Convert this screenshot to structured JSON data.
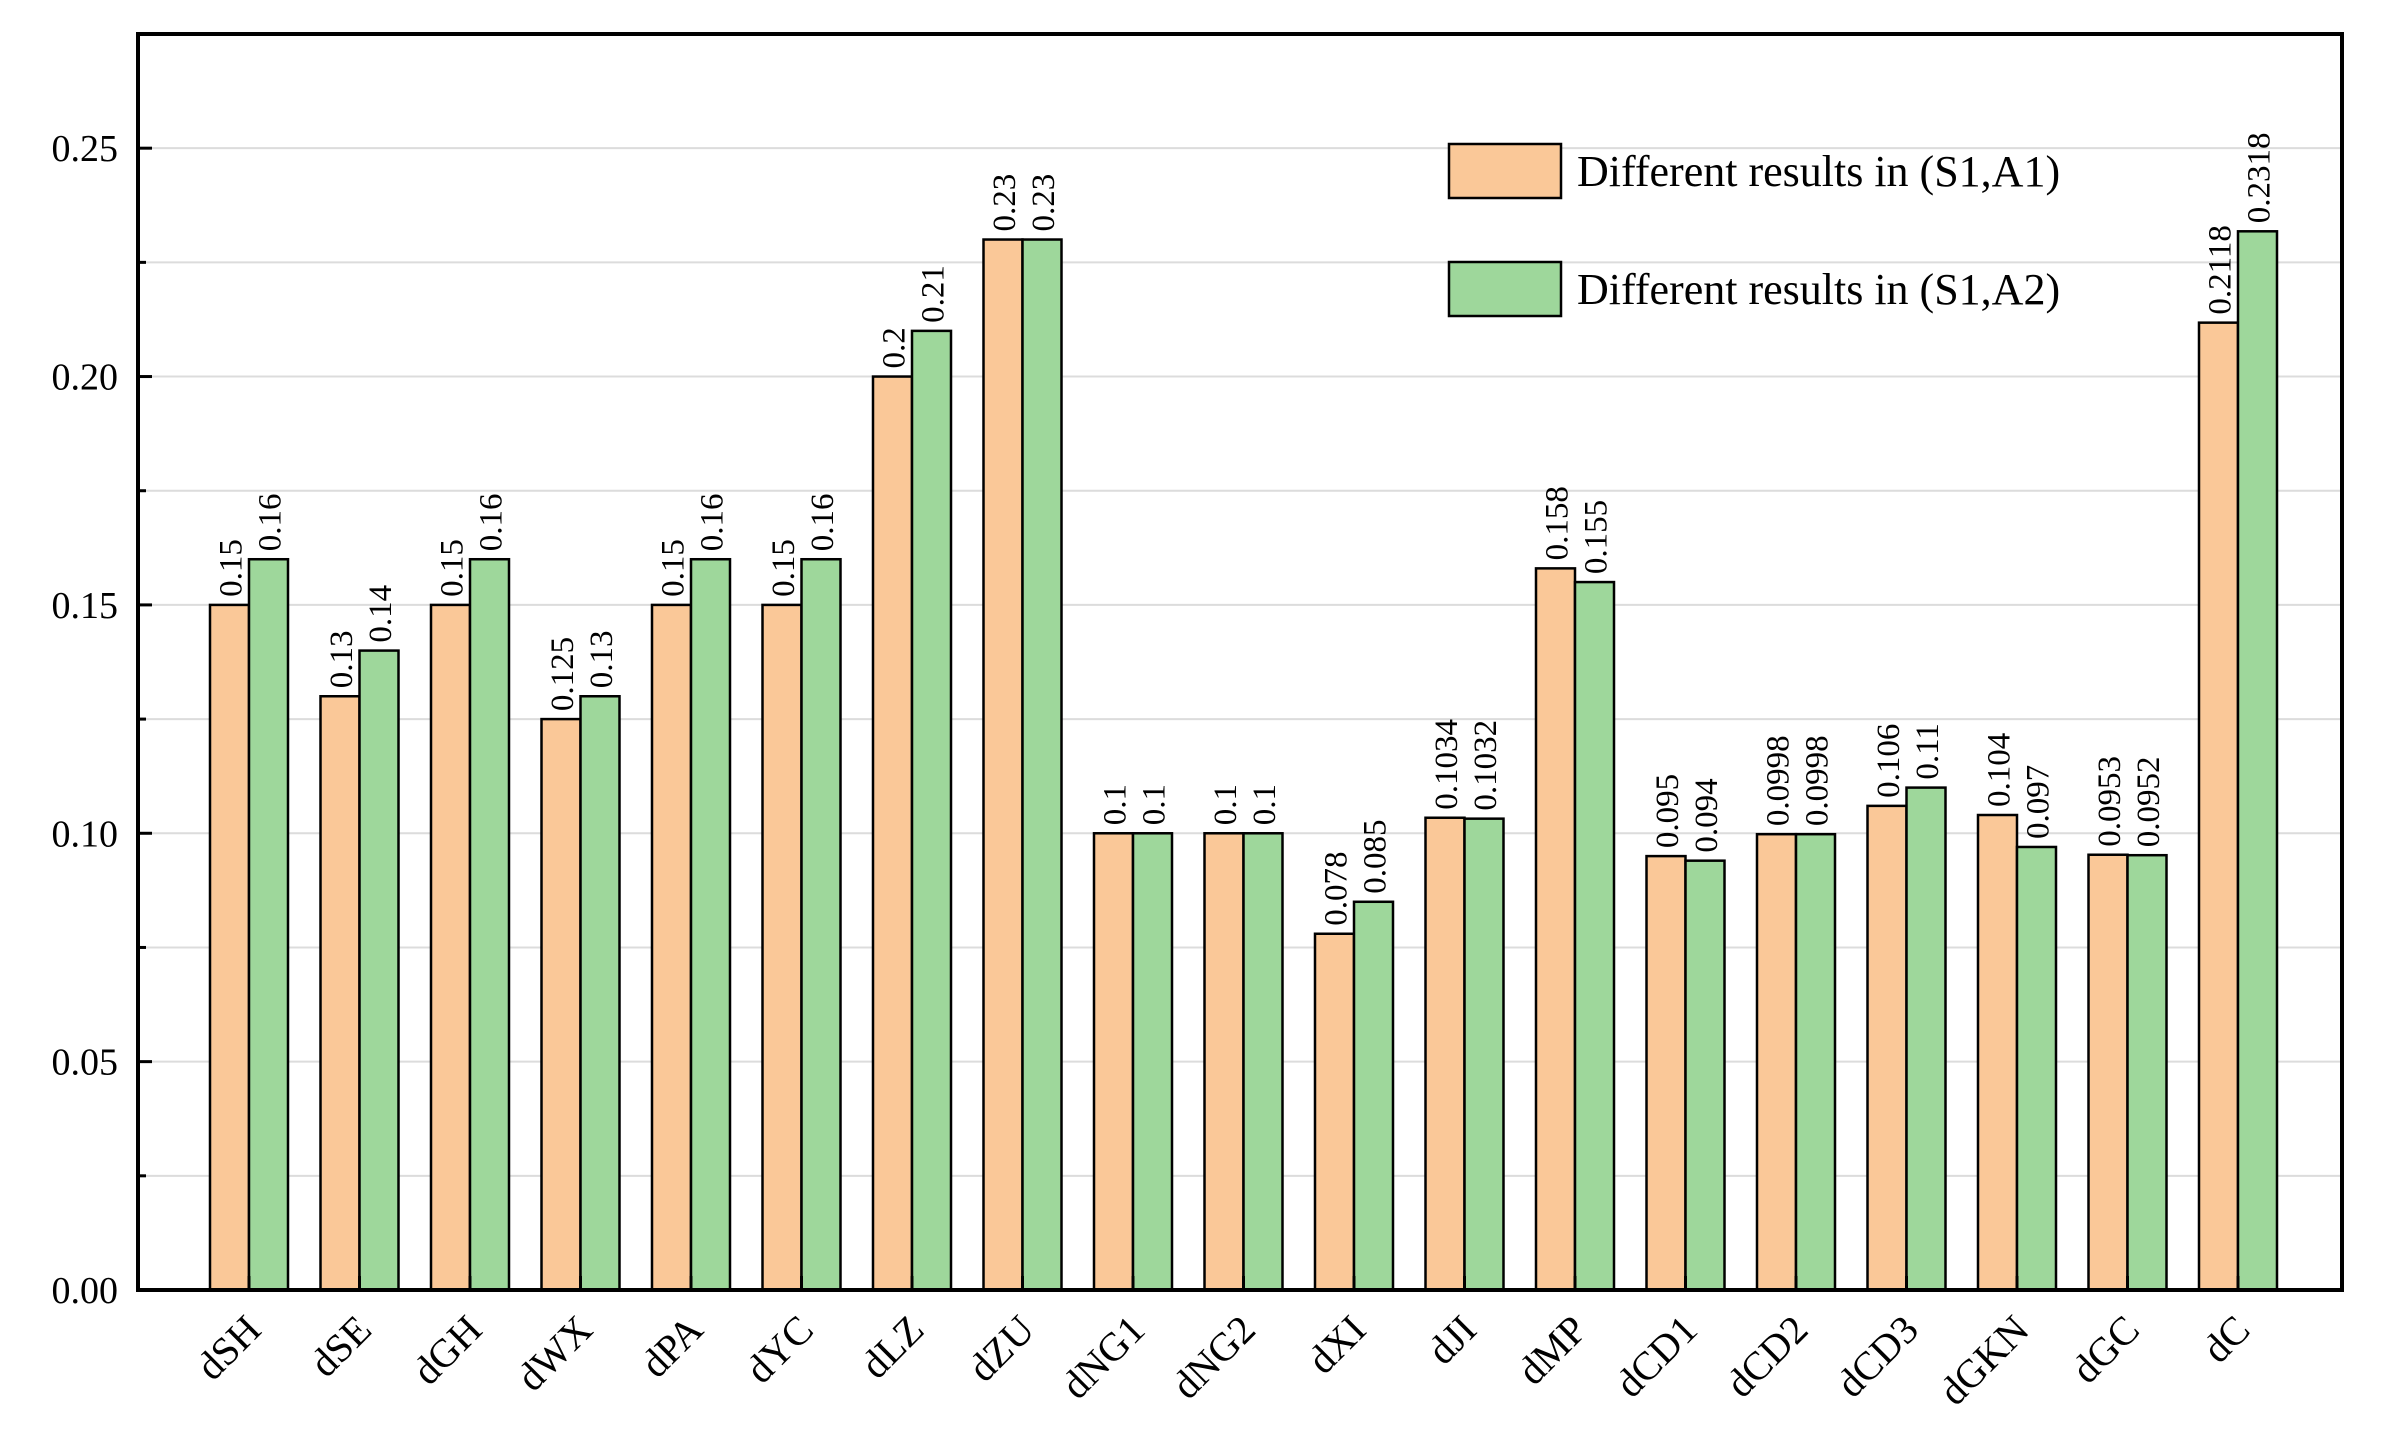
{
  "chart_data": {
    "type": "bar",
    "title": "",
    "xlabel": "",
    "ylabel": "",
    "ylim": [
      0,
      0.275
    ],
    "yticks": [
      "0.00",
      "0.05",
      "0.10",
      "0.15",
      "0.20",
      "0.25"
    ],
    "grid": true,
    "legend_position": "top-right",
    "categories": [
      "dSH",
      "dSE",
      "dGH",
      "dWX",
      "dPA",
      "dYC",
      "dLZ",
      "dZU",
      "dNG1",
      "dNG2",
      "dXI",
      "dJI",
      "dMP",
      "dCD1",
      "dCD2",
      "dCD3",
      "dGKN",
      "dGC",
      "dC"
    ],
    "series": [
      {
        "name": "Different results in (S1,A1)",
        "color": "#FAC898",
        "values": [
          0.15,
          0.13,
          0.15,
          0.125,
          0.15,
          0.15,
          0.2,
          0.23,
          0.1,
          0.1,
          0.078,
          0.1034,
          0.158,
          0.095,
          0.0998,
          0.106,
          0.104,
          0.0953,
          0.2118
        ],
        "labels": [
          "0.15",
          "0.13",
          "0.15",
          "0.125",
          "0.15",
          "0.15",
          "0.2",
          "0.23",
          "0.1",
          "0.1",
          "0.078",
          "0.1034",
          "0.158",
          "0.095",
          "0.0998",
          "0.106",
          "0.104",
          "0.0953",
          "0.2118"
        ]
      },
      {
        "name": "Different results in (S1,A2)",
        "color": "#9ED79B",
        "values": [
          0.16,
          0.14,
          0.16,
          0.13,
          0.16,
          0.16,
          0.21,
          0.23,
          0.1,
          0.1,
          0.085,
          0.1032,
          0.155,
          0.094,
          0.0998,
          0.11,
          0.097,
          0.0952,
          0.2318
        ],
        "labels": [
          "0.16",
          "0.14",
          "0.16",
          "0.13",
          "0.16",
          "0.16",
          "0.21",
          "0.23",
          "0.1",
          "0.1",
          "0.085",
          "0.1032",
          "0.155",
          "0.094",
          "0.0998",
          "0.11",
          "0.097",
          "0.0952",
          "0.2318"
        ]
      }
    ]
  }
}
